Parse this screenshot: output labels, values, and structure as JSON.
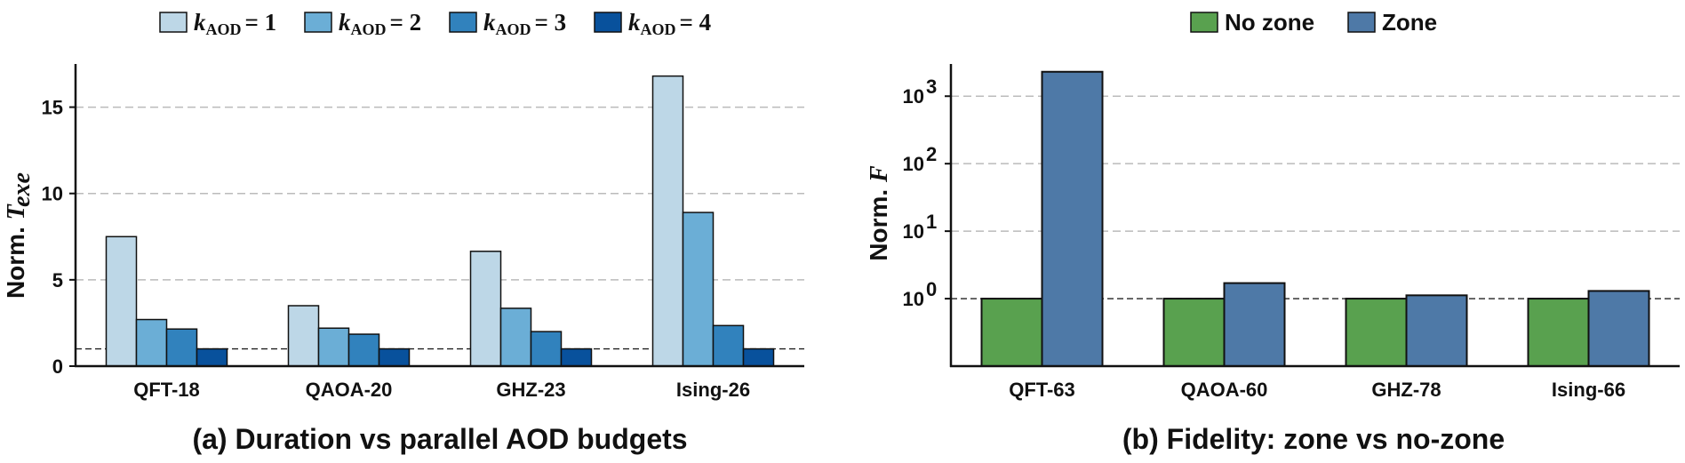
{
  "chart_data": [
    {
      "type": "bar",
      "caption": "(a) Duration vs parallel AOD budgets",
      "ylabel_prefix": "Norm.",
      "ylabel_var": "T",
      "ylabel_sub": "exe",
      "categories": [
        "QFT-18",
        "QAOA-20",
        "GHZ-23",
        "Ising-26"
      ],
      "ylim": [
        0,
        17.5
      ],
      "yticks": [
        0,
        5,
        10,
        15
      ],
      "grid": "horizontal dashed",
      "reference_line": 1,
      "legend_position": "top",
      "legend_var": "k",
      "legend_sub": "AOD",
      "legend_eq": "=",
      "series": [
        {
          "name": "1",
          "color": "#bdd7e7",
          "values": [
            7.5,
            3.5,
            6.65,
            16.8
          ]
        },
        {
          "name": "2",
          "color": "#6baed6",
          "values": [
            2.7,
            2.2,
            3.35,
            8.9
          ]
        },
        {
          "name": "3",
          "color": "#3182bd",
          "values": [
            2.15,
            1.85,
            2.0,
            2.35
          ]
        },
        {
          "name": "4",
          "color": "#08519c",
          "values": [
            1.0,
            1.0,
            1.0,
            1.0
          ]
        }
      ]
    },
    {
      "type": "bar",
      "caption": "(b) Fidelity: zone vs no-zone",
      "ylabel_prefix": "Norm.",
      "ylabel_var": "F",
      "categories": [
        "QFT-63",
        "QAOA-60",
        "GHZ-78",
        "Ising-66"
      ],
      "yscale": "log",
      "ylim": [
        0.1,
        3000
      ],
      "yticks": [
        {
          "base": "10",
          "exp": "0",
          "value": 1
        },
        {
          "base": "10",
          "exp": "1",
          "value": 10
        },
        {
          "base": "10",
          "exp": "2",
          "value": 100
        },
        {
          "base": "10",
          "exp": "3",
          "value": 1000
        }
      ],
      "grid": "horizontal dashed",
      "reference_line": 1,
      "legend_position": "top",
      "series": [
        {
          "name": "No zone",
          "color": "#59a14f",
          "values": [
            1.0,
            1.0,
            1.0,
            1.0
          ]
        },
        {
          "name": "Zone",
          "color": "#4e79a7",
          "values": [
            2300,
            1.7,
            1.12,
            1.3
          ]
        }
      ]
    }
  ]
}
